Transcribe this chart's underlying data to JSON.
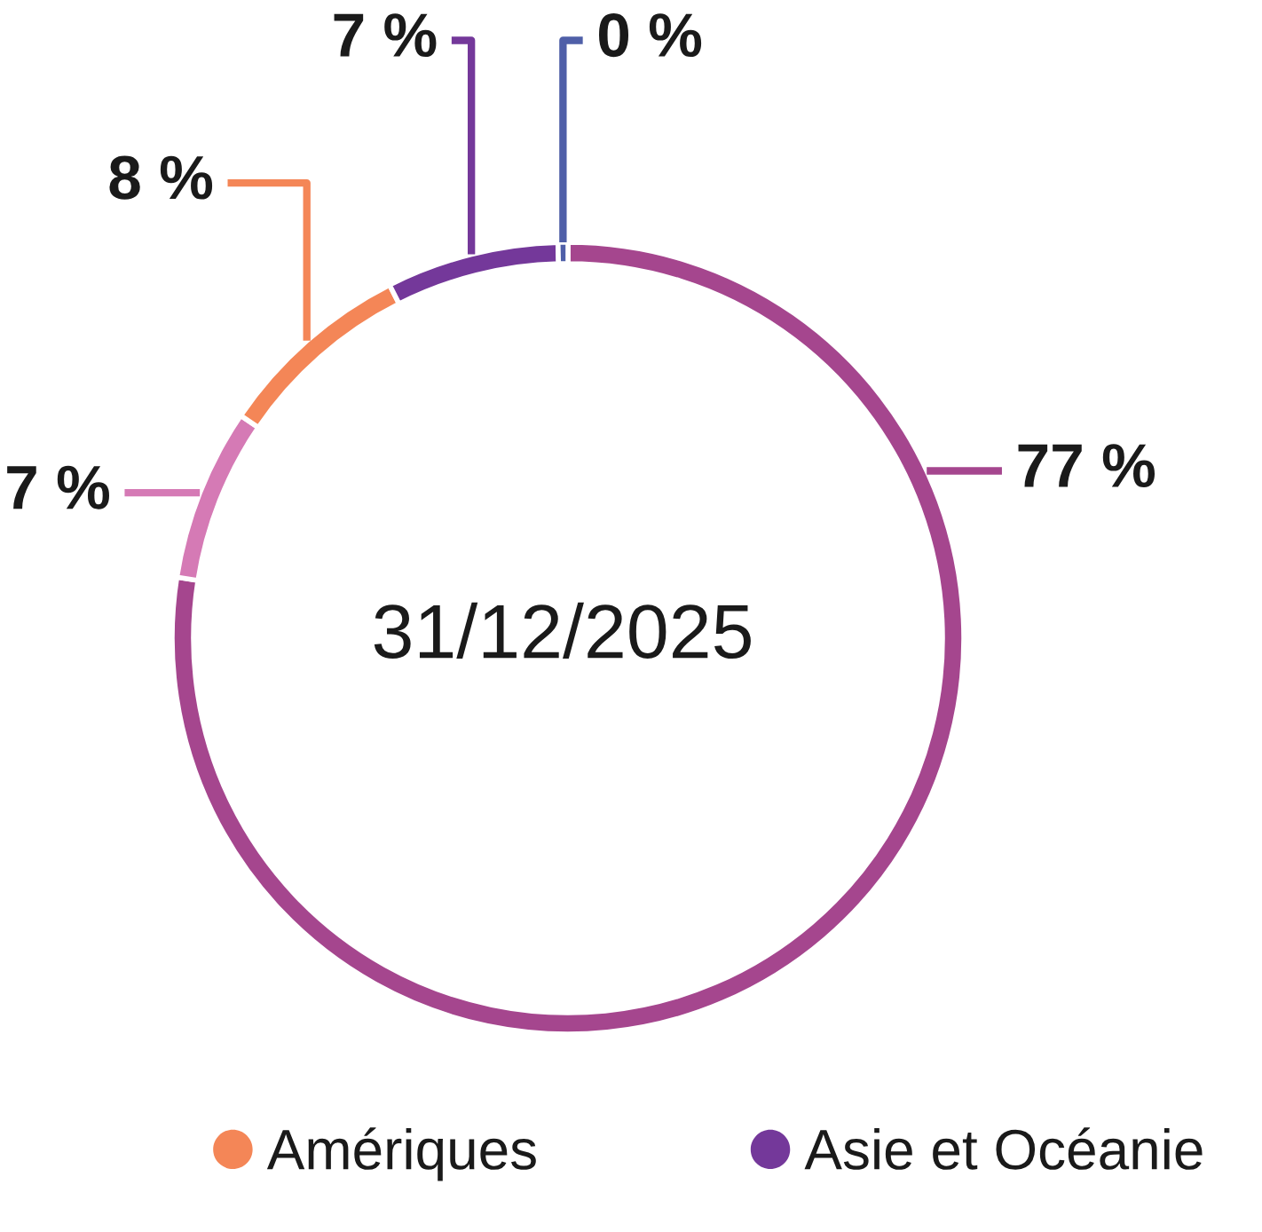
{
  "chart_data": {
    "type": "donut",
    "categories": [
      null,
      null,
      "Amériques",
      "Asie et Océanie",
      null
    ],
    "values": [
      77,
      7,
      8,
      7,
      0.4
    ],
    "colors": [
      "#a5468e",
      "#d57ab5",
      "#f48657",
      "#74389a",
      "#4f5fa8"
    ],
    "value_labels": [
      "77 %",
      "7 %",
      "8 %",
      "7 %",
      "0 %"
    ],
    "annotations": [
      "31/12/2025"
    ],
    "legend": "bottom"
  }
}
